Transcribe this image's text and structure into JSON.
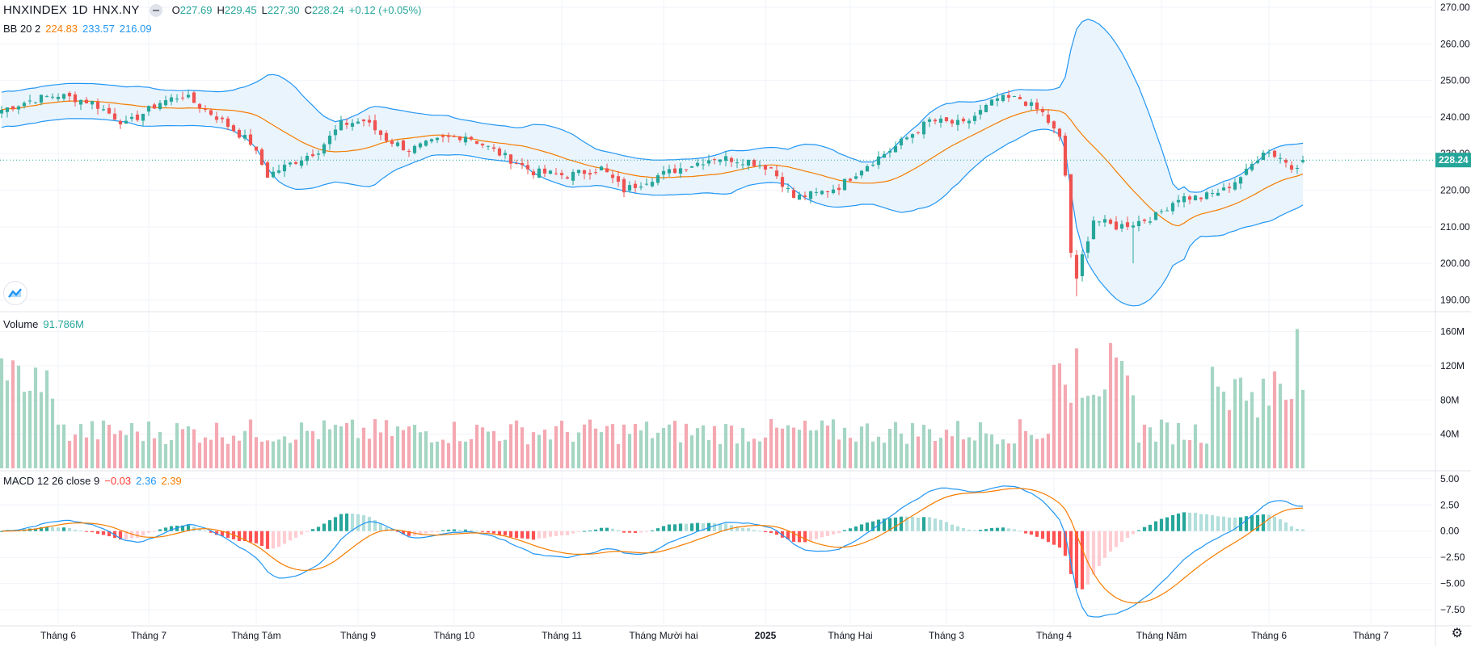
{
  "header": {
    "symbol": "HNXINDEX",
    "interval": "1D",
    "exchange": "HNX.NY",
    "open_label": "O",
    "open": "227.69",
    "high_label": "H",
    "high": "229.45",
    "low_label": "L",
    "low": "227.30",
    "close_label": "C",
    "close": "228.24",
    "change": "+0.12 (+0.05%)"
  },
  "bb": {
    "name": "BB 20 2",
    "basis": "224.83",
    "upper": "233.57",
    "lower": "216.09"
  },
  "volume": {
    "name": "Volume",
    "value": "91.786M"
  },
  "macd": {
    "name": "MACD 12 26 close 9",
    "hist": "−0.03",
    "macd": "2.36",
    "signal": "2.39"
  },
  "last_price_tag": "228.24",
  "colors": {
    "up": "#26a69a",
    "down": "#ef5350",
    "vol_up": "#a5d6c4",
    "vol_down": "#f4a9b2",
    "bb_line": "#2196f3",
    "bb_fill": "#eaf4fd",
    "basis": "#f57c00",
    "macd": "#2196f3",
    "signal": "#f57c00"
  },
  "chart_data": {
    "type": "candlestick",
    "price_axis": {
      "ticks": [
        "270.00",
        "260.00",
        "250.00",
        "240.00",
        "230.00",
        "220.00",
        "210.00",
        "200.00",
        "190.00"
      ],
      "range": [
        187,
        272
      ]
    },
    "volume_axis": {
      "ticks": [
        "160M",
        "120M",
        "80M",
        "40M"
      ],
      "range": [
        0,
        170
      ]
    },
    "macd_axis": {
      "ticks": [
        "5.00",
        "2.50",
        "0.00",
        "-2.50",
        "-5.00",
        "-7.50"
      ],
      "range": [
        -8.8,
        5.6
      ]
    },
    "x_labels": [
      "Tháng 6",
      "Tháng 7",
      "Tháng Tám",
      "Tháng 9",
      "Tháng 10",
      "Tháng 11",
      "Tháng Mười hai",
      "2025",
      "Tháng Hai",
      "Tháng 3",
      "Tháng 4",
      "Tháng Năm",
      "Tháng 6",
      "Tháng 7"
    ],
    "x_label_bar_index": [
      10,
      26,
      45,
      63,
      80,
      99,
      117,
      135,
      150,
      167,
      186,
      205,
      224,
      242
    ],
    "close_anchors": [
      [
        0,
        242
      ],
      [
        6,
        245
      ],
      [
        10,
        246
      ],
      [
        16,
        244
      ],
      [
        22,
        238
      ],
      [
        28,
        244
      ],
      [
        32,
        246
      ],
      [
        38,
        240
      ],
      [
        44,
        233
      ],
      [
        47,
        224
      ],
      [
        52,
        228
      ],
      [
        56,
        231
      ],
      [
        60,
        238
      ],
      [
        64,
        239
      ],
      [
        68,
        234
      ],
      [
        72,
        231
      ],
      [
        78,
        234
      ],
      [
        82,
        235
      ],
      [
        88,
        230
      ],
      [
        94,
        225
      ],
      [
        100,
        224
      ],
      [
        106,
        226
      ],
      [
        110,
        220
      ],
      [
        116,
        224
      ],
      [
        120,
        226
      ],
      [
        126,
        229
      ],
      [
        132,
        228
      ],
      [
        136,
        226
      ],
      [
        140,
        218
      ],
      [
        144,
        219
      ],
      [
        148,
        221
      ],
      [
        152,
        226
      ],
      [
        158,
        232
      ],
      [
        164,
        239
      ],
      [
        170,
        238
      ],
      [
        176,
        245
      ],
      [
        180,
        245
      ],
      [
        184,
        241
      ],
      [
        187,
        234
      ],
      [
        188,
        224
      ],
      [
        189,
        203
      ],
      [
        190,
        195
      ],
      [
        191,
        202
      ],
      [
        193,
        212
      ],
      [
        197,
        210
      ],
      [
        200,
        211
      ],
      [
        204,
        213
      ],
      [
        208,
        218
      ],
      [
        212,
        218
      ],
      [
        216,
        220
      ],
      [
        220,
        225
      ],
      [
        223,
        231
      ],
      [
        226,
        229
      ],
      [
        228,
        226
      ],
      [
        230,
        228.24
      ]
    ],
    "bars": 231,
    "last_close": 228.24
  }
}
